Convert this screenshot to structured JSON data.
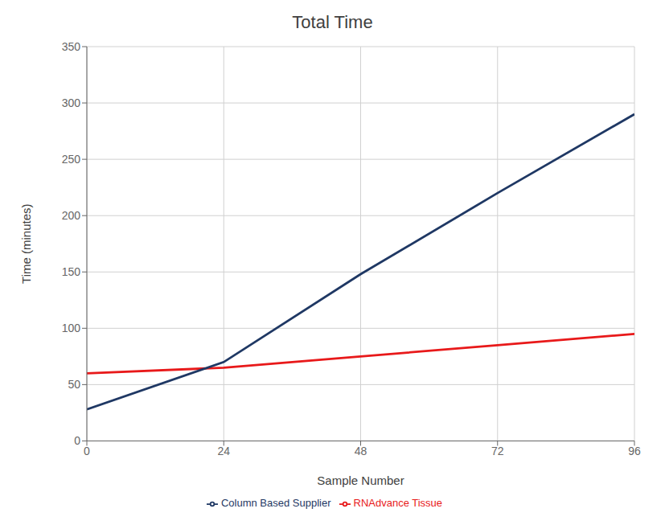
{
  "chart_data": {
    "type": "line",
    "title": "Total Time",
    "xlabel": "Sample Number",
    "ylabel": "Time (minutes)",
    "x": [
      0,
      24,
      48,
      72,
      96
    ],
    "series": [
      {
        "name": "RNAdvance Tissue",
        "color": "#e8191a",
        "values": [
          60,
          65,
          75,
          85,
          95
        ]
      },
      {
        "name": "Column Based Supplier",
        "color": "#1f3864",
        "values": [
          28,
          70,
          148,
          220,
          290
        ]
      }
    ],
    "xlim": [
      0,
      96
    ],
    "ylim": [
      0,
      350
    ],
    "xticks": [
      0,
      24,
      48,
      72,
      96
    ],
    "yticks": [
      0,
      50,
      100,
      150,
      200,
      250,
      300,
      350
    ],
    "grid": true,
    "legend": "bottom"
  }
}
